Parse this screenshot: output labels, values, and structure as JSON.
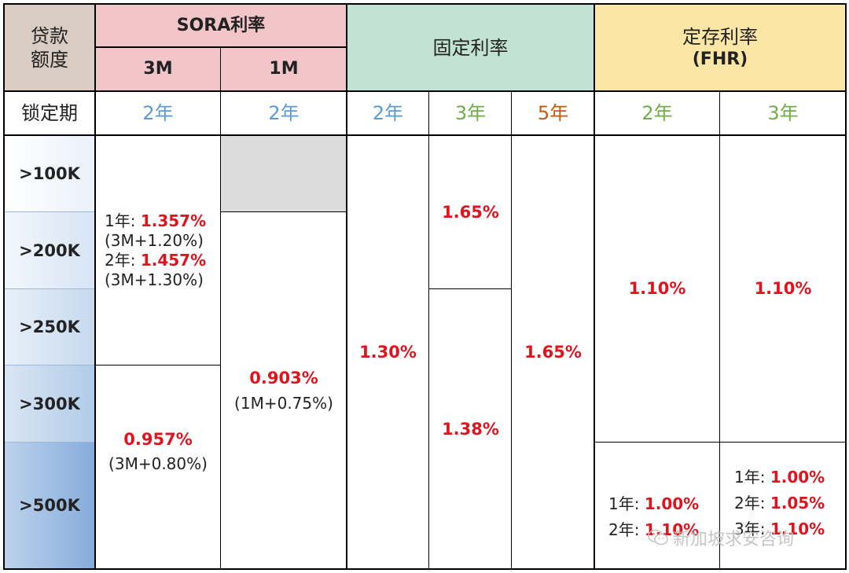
{
  "header": {
    "amount_label": "贷款\n额度",
    "sora": "SORA利率",
    "sora_3m": "3M",
    "sora_1m": "1M",
    "fixed": "固定利率",
    "fhr_line1": "定存利率",
    "fhr_line2": "(FHR)"
  },
  "lock": {
    "label": "锁定期",
    "terms": [
      "2年",
      "2年",
      "2年",
      "3年",
      "5年",
      "2年",
      "3年"
    ]
  },
  "amounts": [
    ">100K",
    ">200K",
    ">250K",
    ">300K",
    ">500K"
  ],
  "sora3m": {
    "upper": {
      "y1_prefix": "1年: ",
      "y1_rate": "1.357%",
      "y1_note": "(3M+1.20%)",
      "y2_prefix": "2年: ",
      "y2_rate": "1.457%",
      "y2_note": "(3M+1.30%)"
    },
    "lower": {
      "rate": "0.957%",
      "note": "(3M+0.80%)"
    }
  },
  "sora1m": {
    "rate": "0.903%",
    "note": "(1M+0.75%)"
  },
  "fixed": {
    "y2": "1.30%",
    "y3_upper": "1.65%",
    "y3_lower": "1.38%",
    "y5": "1.65%"
  },
  "fhr": {
    "y2_upper": "1.10%",
    "y3_upper": "1.10%",
    "y2_lower": {
      "l1_prefix": "1年: ",
      "l1_rate": "1.00%",
      "l2_prefix": "2年: ",
      "l2_rate": "1.10%"
    },
    "y3_lower": {
      "l1_prefix": "1年: ",
      "l1_rate": "1.00%",
      "l2_prefix": "2年: ",
      "l2_rate": "1.05%",
      "l3_prefix": "3年: ",
      "l3_rate": "1.10%"
    }
  },
  "watermark": "新加坡求安咨询",
  "colors": {
    "header_amount": "#d9cdc3",
    "header_sora": "#f2c6c9",
    "header_fixed": "#c2e3d3",
    "header_fhr": "#fbe6a6",
    "term_blue": "#5b9bd5",
    "term_green": "#70ad47",
    "term_orange": "#c55a11",
    "rate_red": "#e0141e",
    "na_gray": "#dcdcdc"
  },
  "icons": {
    "watermark": "wechat-icon"
  }
}
